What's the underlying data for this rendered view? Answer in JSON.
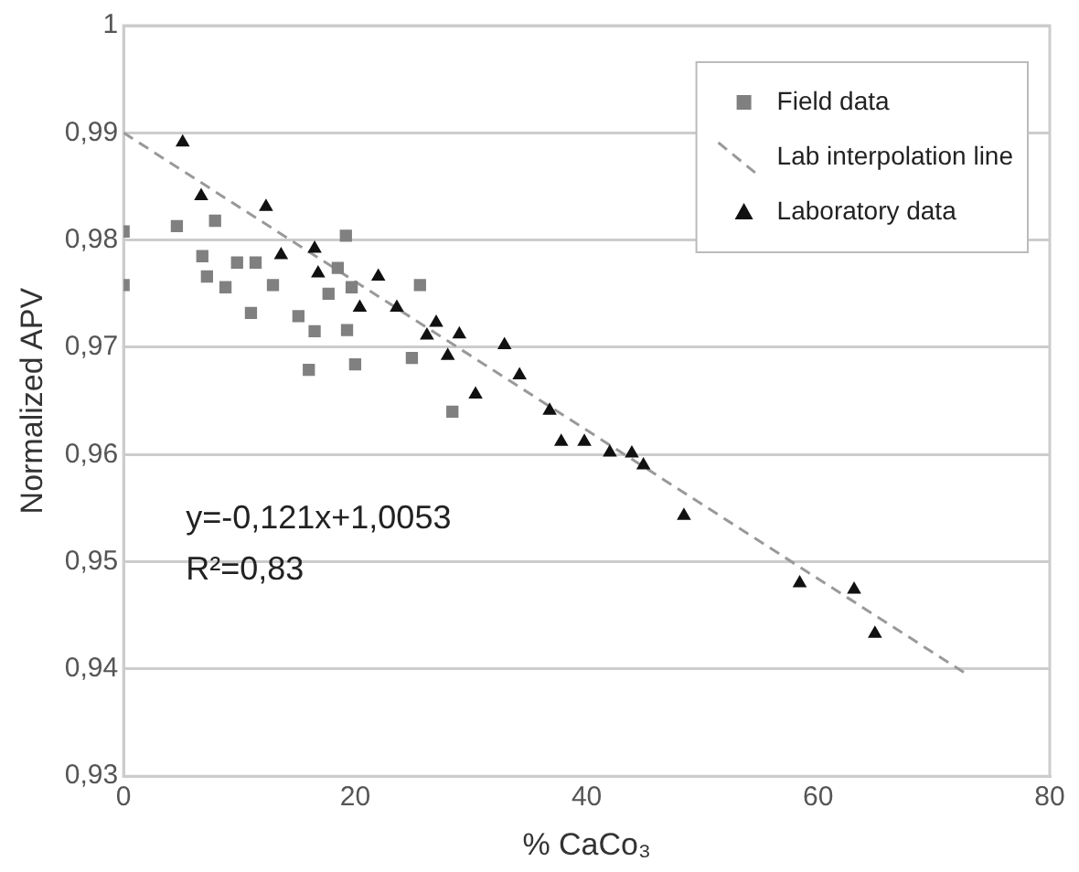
{
  "chart_data": {
    "type": "scatter",
    "xlabel": "% CaCo₃",
    "ylabel": "Normalized APV",
    "xlim": [
      0,
      80
    ],
    "xticks": [
      0,
      20,
      40,
      60,
      80
    ],
    "ylim": [
      0.93,
      1
    ],
    "yticks": [
      {
        "value": 0.93,
        "label": "0,93"
      },
      {
        "value": 0.94,
        "label": "0,94"
      },
      {
        "value": 0.95,
        "label": "0,95"
      },
      {
        "value": 0.96,
        "label": "0,96"
      },
      {
        "value": 0.97,
        "label": "0,97"
      },
      {
        "value": 0.98,
        "label": "0,98"
      },
      {
        "value": 0.99,
        "label": "0,99"
      },
      1
    ],
    "grid": "y",
    "legend": "top right",
    "annotations": [
      "y=-0,121x+1,0053",
      "R²=0,83"
    ],
    "series": [
      {
        "name": "Field data",
        "marker": "square",
        "color": "#808080",
        "x": [
          0,
          0,
          4.6,
          6.8,
          7.2,
          7.9,
          8.8,
          9.8,
          11.4,
          11.0,
          12.9,
          15.1,
          16.5,
          16.0,
          17.7,
          18.5,
          19.2,
          19.3,
          19.7,
          20.0,
          25.6,
          24.9,
          28.4
        ],
        "values": [
          0.9808,
          0.9758,
          0.9813,
          0.9785,
          0.9766,
          0.9818,
          0.9756,
          0.9779,
          0.9779,
          0.9732,
          0.9758,
          0.9729,
          0.9715,
          0.9679,
          0.975,
          0.9774,
          0.9804,
          0.9716,
          0.9756,
          0.9684,
          0.9758,
          0.969,
          0.964
        ]
      },
      {
        "name": "Lab interpolation line",
        "type": "line",
        "marker": "none",
        "line_style": "dashed",
        "color": "#999999",
        "x": [
          0,
          72.7
        ],
        "values": [
          0.99,
          0.9396
        ]
      },
      {
        "name": "Laboratory data",
        "marker": "triangle",
        "color": "#111111",
        "x": [
          5.1,
          6.7,
          12.3,
          13.6,
          16.5,
          16.8,
          20.4,
          22.0,
          23.6,
          26.2,
          27.0,
          28.0,
          29.0,
          30.4,
          32.9,
          34.2,
          36.8,
          37.8,
          39.8,
          42.0,
          43.9,
          44.9,
          48.4,
          58.4,
          63.1,
          64.9
        ],
        "values": [
          0.9891,
          0.9841,
          0.9831,
          0.9786,
          0.9792,
          0.9769,
          0.9737,
          0.9766,
          0.9737,
          0.9711,
          0.9723,
          0.9692,
          0.9712,
          0.9656,
          0.9702,
          0.9674,
          0.9641,
          0.9612,
          0.9612,
          0.9602,
          0.9601,
          0.959,
          0.9543,
          0.948,
          0.9474,
          0.9433
        ]
      }
    ]
  }
}
